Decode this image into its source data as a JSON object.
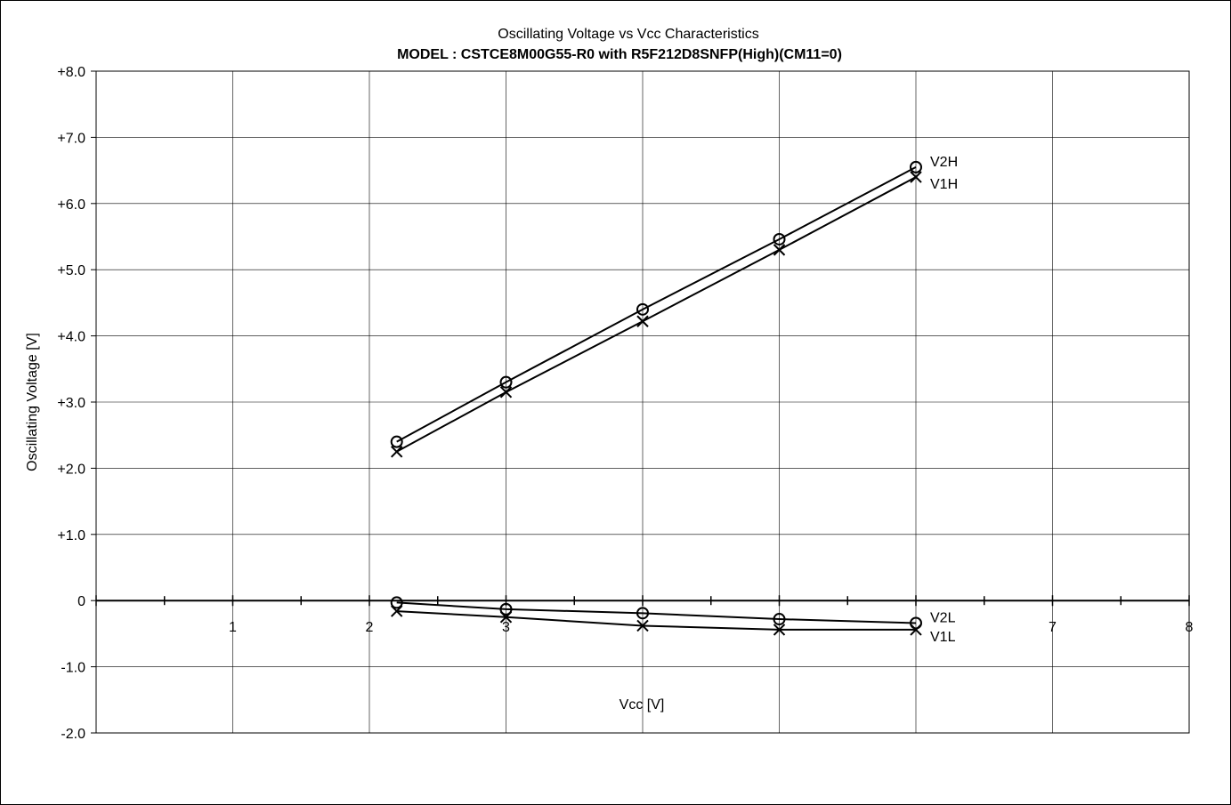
{
  "chart_data": {
    "type": "line",
    "title": "Oscillating Voltage vs Vcc Characteristics",
    "subtitle": "MODEL : CSTCE8M00G55-R0 with R5F212D8SNFP(High)(CM11=0)",
    "xlabel": "Vcc [V]",
    "ylabel": "Oscillating Voltage [V]",
    "xlim": [
      0,
      8
    ],
    "ylim": [
      -2,
      8
    ],
    "grid": true,
    "x_ticks": [
      1,
      2,
      3,
      4,
      5,
      6,
      7,
      8
    ],
    "x_tick_labels": [
      "1",
      "2",
      "3",
      "",
      "",
      "",
      "7",
      "8"
    ],
    "y_ticks": [
      -2,
      -1,
      0,
      1,
      2,
      3,
      4,
      5,
      6,
      7,
      8
    ],
    "y_tick_labels": [
      "-2.0",
      "-1.0",
      "0",
      "+1.0",
      "+2.0",
      "+3.0",
      "+4.0",
      "+5.0",
      "+6.0",
      "+7.0",
      "+8.0"
    ],
    "x": [
      2.2,
      3,
      4,
      5,
      6
    ],
    "series": [
      {
        "name": "V2H",
        "marker": "circle",
        "values": [
          2.4,
          3.3,
          4.4,
          5.46,
          6.55
        ]
      },
      {
        "name": "V1H",
        "marker": "x",
        "values": [
          2.25,
          3.15,
          4.22,
          5.3,
          6.4
        ]
      },
      {
        "name": "V2L",
        "marker": "circle",
        "values": [
          -0.03,
          -0.13,
          -0.19,
          -0.28,
          -0.34
        ]
      },
      {
        "name": "V1L",
        "marker": "x",
        "values": [
          -0.16,
          -0.25,
          -0.38,
          -0.44,
          -0.44
        ]
      }
    ],
    "legend_placement": "labels at right end of each line"
  }
}
